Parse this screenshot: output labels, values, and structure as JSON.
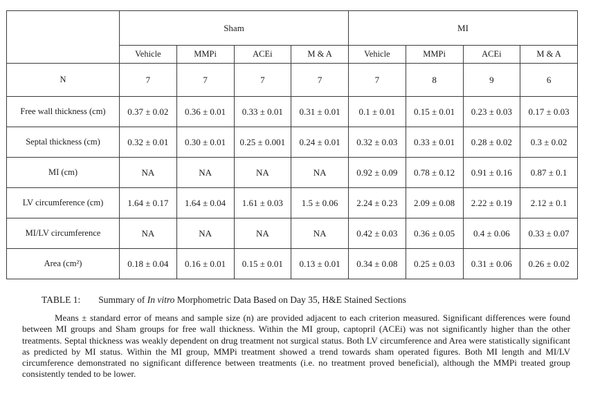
{
  "table": {
    "groups": [
      "Sham",
      "MI"
    ],
    "column_headers": [
      "Vehicle",
      "MMPi",
      "ACEi",
      "M & A",
      "Vehicle",
      "MMPi",
      "ACEi",
      "M & A"
    ],
    "rows": [
      {
        "label": "N",
        "values": [
          "7",
          "7",
          "7",
          "7",
          "7",
          "8",
          "9",
          "6"
        ]
      },
      {
        "label": "Free wall thickness (cm)",
        "values": [
          "0.37 ± 0.02",
          "0.36 ± 0.01",
          "0.33 ± 0.01",
          "0.31 ± 0.01",
          "0.1 ± 0.01",
          "0.15 ± 0.01",
          "0.23 ± 0.03",
          "0.17 ± 0.03"
        ]
      },
      {
        "label": "Septal thickness (cm)",
        "values": [
          "0.32 ± 0.01",
          "0.30 ± 0.01",
          "0.25 ± 0.001",
          "0.24 ± 0.01",
          "0.32 ± 0.03",
          "0.33 ± 0.01",
          "0.28 ± 0.02",
          "0.3 ± 0.02"
        ]
      },
      {
        "label": "MI (cm)",
        "values": [
          "NA",
          "NA",
          "NA",
          "NA",
          "0.92 ± 0.09",
          "0.78 ± 0.12",
          "0.91 ± 0.16",
          "0.87 ± 0.1"
        ]
      },
      {
        "label": "LV circumference (cm)",
        "values": [
          "1.64 ± 0.17",
          "1.64 ± 0.04",
          "1.61 ± 0.03",
          "1.5 ± 0.06",
          "2.24 ± 0.23",
          "2.09 ± 0.08",
          "2.22 ± 0.19",
          "2.12 ± 0.1"
        ]
      },
      {
        "label": "MI/LV circumference",
        "values": [
          "NA",
          "NA",
          "NA",
          "NA",
          "0.42 ± 0.03",
          "0.36 ± 0.05",
          "0.4 ± 0.06",
          "0.33 ± 0.07"
        ]
      },
      {
        "label": "Area (cm²)",
        "values": [
          "0.18 ± 0.04",
          "0.16 ± 0.01",
          "0.15 ± 0.01",
          "0.13 ± 0.01",
          "0.34 ± 0.08",
          "0.25 ± 0.03",
          "0.31 ± 0.06",
          "0.26 ± 0.02"
        ]
      }
    ]
  },
  "caption": {
    "label": "TABLE 1:",
    "text_pre": "Summary of ",
    "italic": "In vitro",
    "text_post": " Morphometric Data Based on Day 35, H&E Stained Sections"
  },
  "notes": "Means ± standard error of means and sample size (n) are provided adjacent to each criterion measured. Significant differences were found between MI groups and Sham groups for free wall thickness. Within the MI group, captopril (ACEi) was not significantly higher than the other treatments. Septal thickness was weakly dependent on drug treatment not surgical status. Both LV circumference and Area were statistically significant as predicted by MI status. Within the MI group, MMPi treatment showed a trend towards sham operated figures. Both MI length and MI/LV circumference demonstrated no significant difference between treatments (i.e. no treatment proved beneficial), although the MMPi treated group consistently tended to be lower."
}
